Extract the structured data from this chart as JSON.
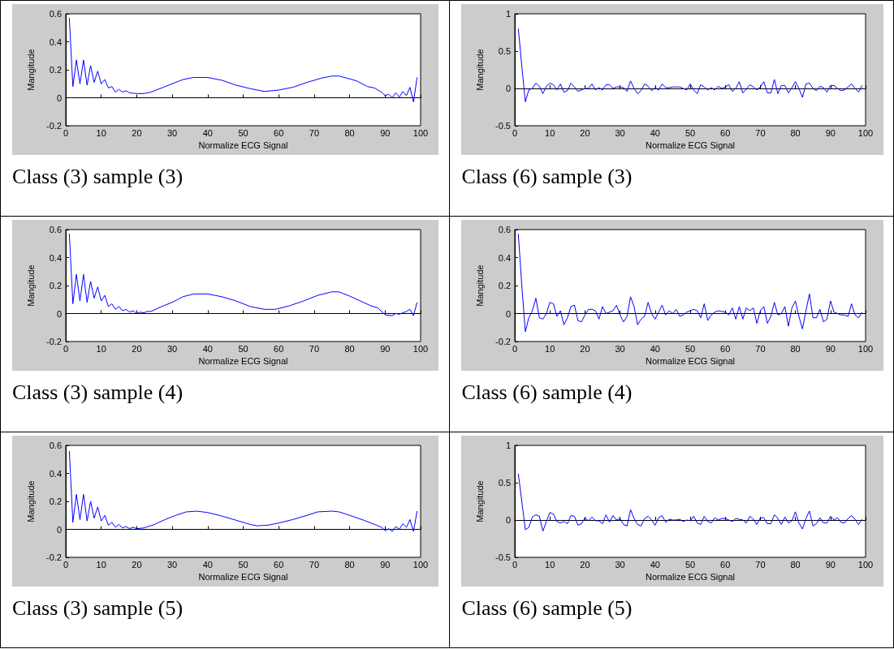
{
  "chart_data": [
    {
      "type": "line",
      "title": "Class (3) sample (3)",
      "xlabel": "Normalize ECG Signal",
      "ylabel": "Mangitude",
      "color": "#0000ff",
      "marker": "none",
      "xlim": [
        0,
        100
      ],
      "xticks": [
        0,
        10,
        20,
        30,
        40,
        50,
        60,
        70,
        80,
        90,
        100
      ],
      "ylim": [
        -0.2,
        0.6
      ],
      "yticks": [
        -0.2,
        0,
        0.2,
        0.4,
        0.6
      ],
      "x": [
        1,
        2,
        3,
        4,
        5,
        6,
        7,
        8,
        9,
        10,
        11,
        12,
        13,
        14,
        15,
        16,
        17,
        18,
        20,
        22,
        24,
        27,
        30,
        33,
        36,
        40,
        44,
        48,
        52,
        56,
        60,
        64,
        68,
        72,
        75,
        77,
        80,
        82,
        85,
        87,
        89,
        90,
        91,
        92,
        93,
        94,
        95,
        96,
        97,
        98,
        99
      ],
      "values": [
        0.57,
        0.08,
        0.27,
        0.1,
        0.27,
        0.09,
        0.23,
        0.11,
        0.19,
        0.1,
        0.13,
        0.07,
        0.08,
        0.04,
        0.06,
        0.04,
        0.05,
        0.035,
        0.03,
        0.03,
        0.04,
        0.07,
        0.1,
        0.13,
        0.145,
        0.145,
        0.125,
        0.09,
        0.065,
        0.045,
        0.055,
        0.075,
        0.11,
        0.14,
        0.155,
        0.155,
        0.135,
        0.12,
        0.08,
        0.07,
        0.04,
        0.015,
        0.025,
        0,
        0.035,
        0.005,
        0.045,
        0.015,
        0.075,
        -0.03,
        0.145
      ]
    },
    {
      "type": "line",
      "title": "Class (6) sample (3)",
      "xlabel": "Normalize ECG Signal",
      "ylabel": "Mangitude",
      "color": "#0000ff",
      "marker": "none",
      "xlim": [
        0,
        100
      ],
      "xticks": [
        0,
        10,
        20,
        30,
        40,
        50,
        60,
        70,
        80,
        90,
        100
      ],
      "ylim": [
        -0.5,
        1
      ],
      "yticks": [
        -0.5,
        0,
        0.5,
        1
      ],
      "x": [
        1,
        2,
        3,
        4,
        5,
        6,
        7,
        8,
        9,
        10,
        11,
        12,
        13,
        14,
        15,
        16,
        17,
        18,
        19,
        20,
        21,
        22,
        23,
        24,
        25,
        26,
        27,
        28,
        29,
        30,
        31,
        32,
        33,
        34,
        35,
        36,
        37,
        38,
        39,
        40,
        41,
        42,
        43,
        44,
        45,
        46,
        47,
        48,
        49,
        50,
        51,
        52,
        53,
        54,
        55,
        56,
        57,
        58,
        59,
        60,
        61,
        62,
        63,
        64,
        65,
        66,
        67,
        68,
        69,
        70,
        71,
        72,
        73,
        74,
        75,
        76,
        77,
        78,
        79,
        80,
        81,
        82,
        83,
        84,
        85,
        86,
        87,
        88,
        89,
        90,
        91,
        92,
        93,
        94,
        95,
        96,
        97,
        98,
        99
      ],
      "values": [
        0.8,
        0.3,
        -0.18,
        -0.02,
        0,
        0.07,
        0.03,
        -0.07,
        0.03,
        0.07,
        0.05,
        -0.02,
        0.06,
        -0.05,
        -0.03,
        0.07,
        0.02,
        -0.04,
        -0.02,
        0,
        0,
        0.06,
        -0.02,
        0.01,
        -0.02,
        0.05,
        0.05,
        0,
        0.02,
        0.02,
        0.01,
        -0.04,
        0.1,
        0,
        -0.07,
        -0.03,
        0.06,
        0.03,
        -0.03,
        0.01,
        -0.02,
        0.06,
        0.01,
        0.01,
        0.02,
        0.02,
        0.02,
        0,
        -0.02,
        0.06,
        -0.02,
        -0.07,
        0.05,
        0.02,
        -0.02,
        0.01,
        -0.02,
        0.03,
        0,
        0.02,
        0.05,
        -0.04,
        0,
        0.09,
        -0.06,
        -0.01,
        0.05,
        0.02,
        -0.02,
        0.02,
        0.09,
        -0.06,
        -0.06,
        0.12,
        -0.07,
        0.04,
        0.04,
        -0.06,
        0.01,
        0.09,
        0,
        -0.12,
        0.06,
        0.07,
        0,
        -0.03,
        0.03,
        0.01,
        -0.05,
        0.04,
        0.04,
        0,
        -0.03,
        -0.02,
        0.02,
        0.06,
        0,
        -0.05,
        0.04
      ]
    },
    {
      "type": "line",
      "title": "Class (3) sample (4)",
      "xlabel": "Normalize ECG Signal",
      "ylabel": "Mangitude",
      "color": "#0000ff",
      "marker": "none",
      "xlim": [
        0,
        100
      ],
      "xticks": [
        0,
        10,
        20,
        30,
        40,
        50,
        60,
        70,
        80,
        90,
        100
      ],
      "ylim": [
        -0.2,
        0.6
      ],
      "yticks": [
        -0.2,
        0,
        0.2,
        0.4,
        0.6
      ],
      "x": [
        1,
        2,
        3,
        4,
        5,
        6,
        7,
        8,
        9,
        10,
        11,
        12,
        13,
        14,
        15,
        16,
        17,
        18,
        19,
        20,
        21,
        22,
        23,
        24,
        27,
        30,
        33,
        36,
        40,
        44,
        48,
        52,
        56,
        59,
        63,
        67,
        71,
        75,
        77,
        80,
        83,
        86,
        88,
        90,
        92,
        93,
        94,
        96,
        97,
        98,
        99
      ],
      "values": [
        0.57,
        0.07,
        0.28,
        0.09,
        0.28,
        0.08,
        0.23,
        0.11,
        0.19,
        0.09,
        0.13,
        0.05,
        0.07,
        0.03,
        0.05,
        0.02,
        0.03,
        0.01,
        0.02,
        0,
        0.01,
        0.005,
        0.015,
        0.015,
        0.05,
        0.08,
        0.12,
        0.14,
        0.14,
        0.12,
        0.09,
        0.05,
        0.03,
        0.03,
        0.055,
        0.09,
        0.13,
        0.155,
        0.155,
        0.125,
        0.09,
        0.055,
        0.04,
        -0.01,
        -0.015,
        0,
        -0.005,
        0.015,
        0.03,
        -0.015,
        0.08
      ]
    },
    {
      "type": "line",
      "title": "Class (6) sample (4)",
      "xlabel": "Normalize ECG Signal",
      "ylabel": "Mangitude",
      "color": "#0000ff",
      "marker": "none",
      "xlim": [
        0,
        100
      ],
      "xticks": [
        0,
        10,
        20,
        30,
        40,
        50,
        60,
        70,
        80,
        90,
        100
      ],
      "ylim": [
        -0.2,
        0.6
      ],
      "yticks": [
        -0.2,
        0,
        0.2,
        0.4,
        0.6
      ],
      "x": [
        1,
        2,
        3,
        4,
        5,
        6,
        7,
        8,
        9,
        10,
        11,
        12,
        13,
        14,
        15,
        16,
        17,
        18,
        19,
        20,
        21,
        22,
        23,
        24,
        25,
        26,
        27,
        28,
        29,
        30,
        31,
        32,
        33,
        34,
        35,
        36,
        37,
        38,
        39,
        40,
        41,
        42,
        43,
        44,
        45,
        46,
        47,
        48,
        49,
        50,
        51,
        52,
        53,
        54,
        55,
        56,
        57,
        58,
        59,
        60,
        61,
        62,
        63,
        64,
        65,
        66,
        67,
        68,
        69,
        70,
        71,
        72,
        73,
        74,
        75,
        76,
        77,
        78,
        79,
        80,
        81,
        82,
        83,
        84,
        85,
        86,
        87,
        88,
        89,
        90,
        91,
        92,
        93,
        94,
        95,
        96,
        97,
        98,
        99
      ],
      "values": [
        0.57,
        0.2,
        -0.13,
        -0.03,
        0.02,
        0.11,
        -0.03,
        -0.04,
        0,
        0.08,
        0.07,
        -0.02,
        0.02,
        -0.08,
        -0.03,
        0.05,
        0.06,
        -0.05,
        -0.06,
        -0.01,
        0.03,
        0.03,
        0.02,
        -0.04,
        0.05,
        0,
        0.01,
        0.02,
        0.06,
        -0.01,
        -0.06,
        -0.02,
        0.12,
        0.05,
        -0.08,
        -0.04,
        -0.02,
        0.08,
        0,
        -0.04,
        0.01,
        0.06,
        -0.01,
        0.02,
        0,
        0.03,
        -0.02,
        -0.01,
        0.01,
        0.02,
        0.03,
        0.02,
        -0.03,
        0.07,
        -0.05,
        -0.01,
        0.01,
        0.02,
        0.015,
        0.01,
        -0.01,
        0.04,
        -0.04,
        0.05,
        -0.04,
        0.04,
        0.02,
        0.04,
        -0.07,
        0.02,
        0.05,
        -0.07,
        -0.02,
        0.08,
        -0.01,
        0,
        0.05,
        -0.09,
        0.04,
        0.09,
        -0.02,
        -0.11,
        0.02,
        0.14,
        -0.03,
        -0.03,
        0.03,
        -0.06,
        -0.04,
        0.09,
        0.01,
        0,
        -0.01,
        -0.01,
        -0.02,
        0.07,
        -0.01,
        -0.03,
        0.01
      ]
    },
    {
      "type": "line",
      "title": "Class (3) sample (5)",
      "xlabel": "Normalize ECG Signal",
      "ylabel": "Mangitude",
      "color": "#0000ff",
      "marker": "none",
      "xlim": [
        0,
        100
      ],
      "xticks": [
        0,
        10,
        20,
        30,
        40,
        50,
        60,
        70,
        80,
        90,
        100
      ],
      "ylim": [
        -0.2,
        0.6
      ],
      "yticks": [
        -0.2,
        0,
        0.2,
        0.4,
        0.6
      ],
      "x": [
        1,
        2,
        3,
        4,
        5,
        6,
        7,
        8,
        9,
        10,
        11,
        12,
        13,
        14,
        15,
        16,
        17,
        18,
        19,
        20,
        22,
        25,
        28,
        31,
        34,
        37,
        40,
        44,
        48,
        52,
        54,
        57,
        60,
        64,
        68,
        71,
        75,
        77,
        80,
        84,
        87,
        89,
        90,
        91,
        92,
        93,
        94,
        95,
        96,
        97,
        98,
        99
      ],
      "values": [
        0.56,
        0.05,
        0.25,
        0.07,
        0.25,
        0.06,
        0.2,
        0.08,
        0.16,
        0.06,
        0.1,
        0.03,
        0.05,
        0.015,
        0.035,
        0.01,
        0.02,
        0.005,
        0.015,
        0.005,
        0.01,
        0.035,
        0.07,
        0.1,
        0.125,
        0.13,
        0.12,
        0.095,
        0.065,
        0.035,
        0.025,
        0.03,
        0.045,
        0.07,
        0.1,
        0.125,
        0.13,
        0.125,
        0.1,
        0.065,
        0.035,
        0.015,
        -0.01,
        0.005,
        -0.015,
        0.02,
        0,
        0.04,
        0.015,
        0.07,
        -0.015,
        0.13
      ]
    },
    {
      "type": "line",
      "title": "Class (6) sample (5)",
      "xlabel": "Normalize ECG Signal",
      "ylabel": "Mangitude",
      "color": "#0000ff",
      "marker": "none",
      "xlim": [
        0,
        100
      ],
      "xticks": [
        0,
        10,
        20,
        30,
        40,
        50,
        60,
        70,
        80,
        90,
        100
      ],
      "ylim": [
        -0.5,
        1
      ],
      "yticks": [
        -0.5,
        0,
        0.5,
        1
      ],
      "x": [
        1,
        2,
        3,
        4,
        5,
        6,
        7,
        8,
        9,
        10,
        11,
        12,
        13,
        14,
        15,
        16,
        17,
        18,
        19,
        20,
        21,
        22,
        23,
        24,
        25,
        26,
        27,
        28,
        29,
        30,
        31,
        32,
        33,
        34,
        35,
        36,
        37,
        38,
        39,
        40,
        41,
        42,
        43,
        44,
        45,
        46,
        47,
        48,
        49,
        50,
        51,
        52,
        53,
        54,
        55,
        56,
        57,
        58,
        59,
        60,
        61,
        62,
        63,
        64,
        65,
        66,
        67,
        68,
        69,
        70,
        71,
        72,
        73,
        74,
        75,
        76,
        77,
        78,
        79,
        80,
        81,
        82,
        83,
        84,
        85,
        86,
        87,
        88,
        89,
        90,
        91,
        92,
        93,
        94,
        95,
        96,
        97,
        98,
        99
      ],
      "values": [
        0.62,
        0.25,
        -0.13,
        -0.1,
        0.04,
        0.07,
        0.05,
        -0.15,
        -0.02,
        0.1,
        0.08,
        -0.02,
        -0.04,
        -0.02,
        -0.05,
        0.06,
        0.05,
        -0.07,
        -0.05,
        0.03,
        -0.01,
        0.04,
        -0.01,
        -0.01,
        -0.05,
        0.07,
        -0.03,
        0.06,
        0,
        0.02,
        -0.06,
        -0.08,
        0.14,
        0.02,
        -0.06,
        -0.08,
        0.02,
        0.05,
        0,
        -0.07,
        0.03,
        0.06,
        -0.03,
        0.01,
        0,
        0,
        0.01,
        -0.02,
        0,
        -0.01,
        0.05,
        -0.04,
        -0.06,
        0.05,
        -0.02,
        -0.04,
        0.03,
        0,
        0.02,
        0.02,
        0,
        -0.02,
        0.02,
        0.01,
        0,
        -0.04,
        0.05,
        0.01,
        -0.06,
        0.03,
        0.03,
        -0.05,
        -0.05,
        0.07,
        0.02,
        -0.06,
        0.04,
        -0.04,
        -0.01,
        0.11,
        -0.04,
        -0.12,
        0.02,
        0.12,
        -0.08,
        -0.05,
        0.03,
        -0.04,
        -0.04,
        0.05,
        0,
        0.03,
        -0.03,
        -0.04,
        0.02,
        0.06,
        0.01,
        -0.06,
        0.01
      ]
    }
  ]
}
